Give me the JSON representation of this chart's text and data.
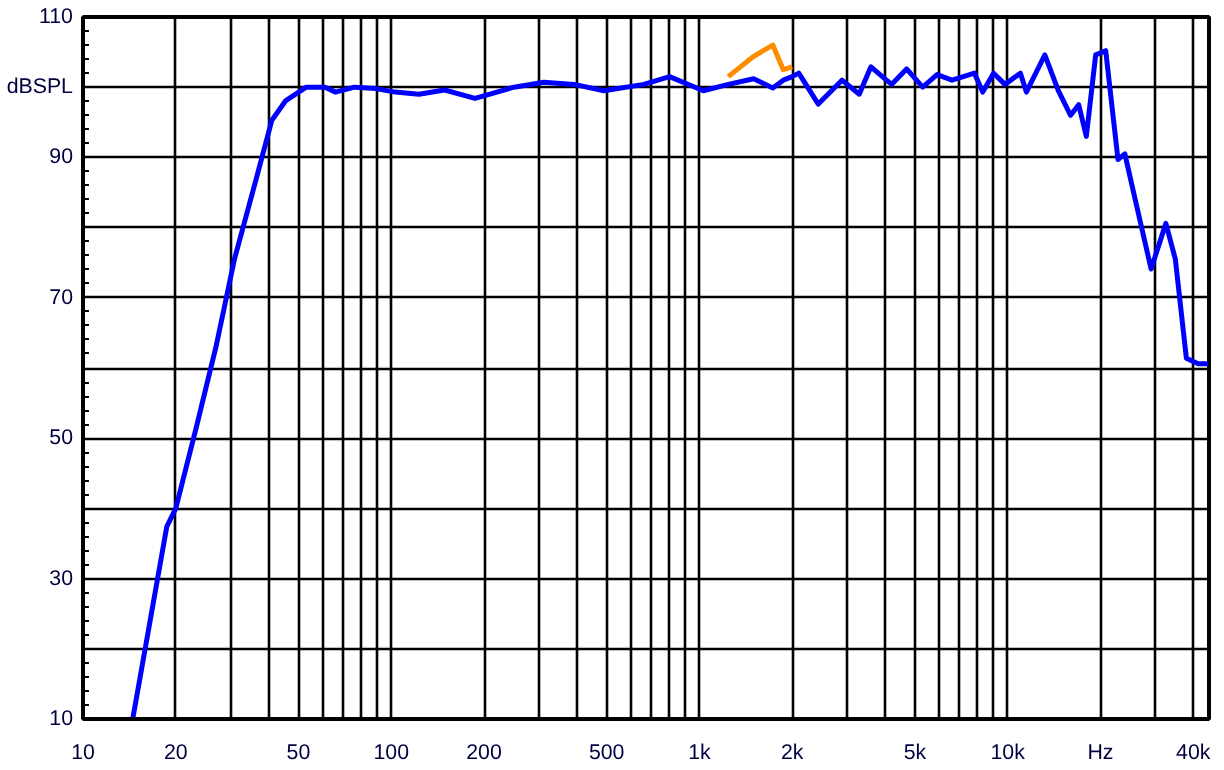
{
  "chart_data": {
    "type": "line",
    "x": [
      14.5,
      18.7,
      20,
      23.3,
      27,
      31,
      36.4,
      41,
      45.5,
      53,
      61,
      66,
      76,
      89,
      103,
      123,
      149,
      187,
      250,
      313,
      392,
      490,
      660,
      800,
      1030,
      1240,
      1500,
      1730,
      1870,
      2000,
      2100,
      2430,
      2900,
      3300,
      3600,
      4200,
      4700,
      5300,
      5900,
      6600,
      7800,
      8300,
      9000,
      9800,
      11000,
      11500,
      13200,
      14600,
      16000,
      17000,
      18000,
      19300,
      20800,
      22800,
      24000,
      25500,
      29200,
      32600,
      35000,
      38000,
      41500,
      44700
    ],
    "series": [
      {
        "color": "#ff8c00",
        "values": [
          null,
          null,
          null,
          null,
          null,
          null,
          null,
          null,
          null,
          null,
          null,
          null,
          null,
          null,
          null,
          null,
          null,
          null,
          null,
          null,
          null,
          null,
          null,
          null,
          null,
          101.5,
          104.4,
          106,
          102.5,
          102.9,
          null,
          null,
          null,
          null,
          null,
          null,
          null,
          null,
          null,
          null,
          null,
          null,
          null,
          null,
          null,
          null,
          null,
          null,
          null,
          null,
          null,
          null,
          null,
          null,
          null,
          null,
          null,
          null,
          null,
          null,
          null,
          null
        ]
      },
      {
        "color": "#0000ff",
        "values": [
          10,
          37.4,
          40,
          51.5,
          63,
          75.5,
          86.8,
          95.3,
          98.1,
          100,
          100,
          99.3,
          100,
          99.8,
          99.3,
          99,
          99.6,
          98.4,
          100,
          100.7,
          100.4,
          99.5,
          100.4,
          101.5,
          99.5,
          100.4,
          101.2,
          99.9,
          101,
          101.5,
          102,
          97.6,
          101,
          99,
          102.9,
          100.4,
          102.6,
          100,
          101.8,
          101,
          102,
          99.3,
          102,
          100.4,
          102,
          99.3,
          104.6,
          99.5,
          96,
          97.5,
          93,
          104.6,
          105.2,
          89.7,
          90.5,
          85.4,
          74.1,
          80.6,
          75.5,
          61.4,
          60.6,
          60.6
        ]
      }
    ],
    "log": "x",
    "xlim": [
      10,
      45000
    ],
    "xticks": [
      10,
      20,
      {
        "value": 30,
        "label": null
      },
      {
        "value": 40,
        "label": null
      },
      50,
      {
        "value": 60,
        "label": null
      },
      {
        "value": 70,
        "label": null
      },
      {
        "value": 80,
        "label": null
      },
      {
        "value": 90,
        "label": null
      },
      100,
      200,
      {
        "value": 300,
        "label": null
      },
      {
        "value": 400,
        "label": null
      },
      500,
      {
        "value": 600,
        "label": null
      },
      {
        "value": 700,
        "label": null
      },
      {
        "value": 800,
        "label": null
      },
      {
        "value": 900,
        "label": null
      },
      {
        "value": 1000,
        "label": "1k"
      },
      {
        "value": 2000,
        "label": "2k"
      },
      {
        "value": 3000,
        "label": null
      },
      {
        "value": 4000,
        "label": null
      },
      {
        "value": 5000,
        "label": "5k"
      },
      {
        "value": 6000,
        "label": null
      },
      {
        "value": 7000,
        "label": null
      },
      {
        "value": 8000,
        "label": null
      },
      {
        "value": 9000,
        "label": null
      },
      {
        "value": 10000,
        "label": "10k"
      },
      {
        "value": 20000,
        "label": "Hz"
      },
      {
        "value": 30000,
        "label": null
      },
      {
        "value": 40000,
        "label": "40k"
      }
    ],
    "ylim": [
      10,
      110
    ],
    "yticks": [
      10,
      {
        "value": 20,
        "label": null
      },
      30,
      {
        "value": 40,
        "label": null
      },
      50,
      {
        "value": 60,
        "label": null
      },
      70,
      {
        "value": 80,
        "label": null
      },
      90,
      {
        "value": 100,
        "label": "dBSPL"
      },
      110
    ],
    "grid": true,
    "line_style": "solid"
  }
}
